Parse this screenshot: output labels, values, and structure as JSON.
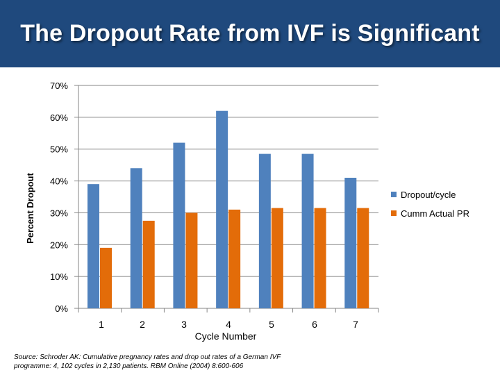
{
  "title": "The Dropout Rate from IVF is Significant",
  "colors": {
    "title_bg": "#1f497d",
    "series_dropout": "#4f81bd",
    "series_pr": "#e36c09"
  },
  "chart_data": {
    "type": "bar",
    "title": "",
    "xlabel": "Cycle Number",
    "ylabel": "Percent Dropout",
    "categories": [
      "1",
      "2",
      "3",
      "4",
      "5",
      "6",
      "7"
    ],
    "series": [
      {
        "name": "Dropout/cycle",
        "values": [
          39,
          44,
          52,
          62,
          48.5,
          48.5,
          41
        ]
      },
      {
        "name": "Cumm Actual PR",
        "values": [
          19,
          27.5,
          30,
          31,
          31.5,
          31.5,
          31.5
        ]
      }
    ],
    "ylim": [
      0,
      70
    ],
    "yticks": [
      0,
      10,
      20,
      30,
      40,
      50,
      60,
      70
    ],
    "ytick_labels": [
      "0%",
      "10%",
      "20%",
      "30%",
      "40%",
      "50%",
      "60%",
      "70%"
    ],
    "grid": true,
    "legend": "right"
  },
  "source": "Source: Schroder AK: Cumulative pregnancy rates and drop out rates of a German IVF programme: 4, 102 cycles in 2,130 patients. RBM Online (2004) 8:600-606"
}
